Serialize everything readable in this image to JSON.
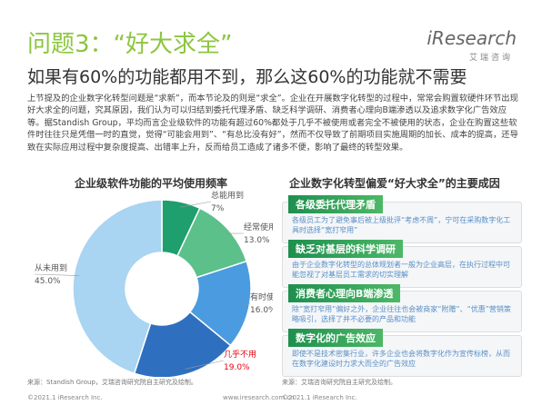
{
  "header": {
    "title": "问题3：“好大求全”",
    "logo": "iResearch",
    "logo_sub": "艾瑞咨询"
  },
  "subtitle": "如果有60%的功能都用不到，那么这60%的功能就不需要",
  "body": "上节提及的企业数字化转型问题是“求新”，而本节论及的则是“求全”。企业在开展数字化转型的过程中，常常会购置软硬件环节出现好大求全的问题，究其原因，我们认为可以归结到委托代理矛盾、缺乏科学调研、消费者心理向B端渗透以及追求数字化广告效应等。据Standish Group，平均而言企业级软件的功能有超过60%都处于几乎不被使用或者完全不被使用的状态，企业在购置这些软件时往往只是凭借一时的直觉，觉得“可能会用到”、“有总比没有好”，然而不仅导致了前期项目实施周期的加长、成本的提高，还导致在实际应用过程中复杂度提高、出错率上升，反而给员工造成了诸多不便，影响了最终的转型效果。",
  "chart_data": {
    "type": "donut",
    "title": "企业级软件功能的平均使用频率",
    "categories": [
      "总能用到",
      "经常使用",
      "有时使用",
      "几乎不用",
      "从未用到"
    ],
    "values": [
      7,
      13,
      16,
      19,
      45
    ],
    "value_labels": [
      "7%",
      "13.0%",
      "16.0%",
      "19.0%",
      "45.0%"
    ],
    "colors": [
      "#1f9e6e",
      "#5cc08a",
      "#4a9be0",
      "#2f6fc0",
      "#a9d4f2"
    ],
    "label_colors": [
      "#555555",
      "#555555",
      "#555555",
      "#e60012",
      "#555555"
    ],
    "source": "来源：Standish Group，艾瑞咨询研究院自主研究及绘制。"
  },
  "causes": {
    "title": "企业数字化转型偏爱“好大求全”的主要成因",
    "items": [
      {
        "title": "各级委托代理矛盾",
        "text": "各级员工为了避免事后被上级批评“考虑不周”，宁可在采购数字化工具时选择“宽打窄用”"
      },
      {
        "title": "缺乏对基层的科学调研",
        "text": "由于企业数字化转型的总体规划者一般为企业高层，在执行过程中可能忽视了对基层员工需求的切实理解"
      },
      {
        "title": "消费者心理向B端渗透",
        "text": "除“宽打窄用”偏好之外，企业往往也会被商家“附赠”、“优惠”营销策略吸引，选择了并不必要的产品和功能"
      },
      {
        "title": "数字化的广告效应",
        "text": "即使不是技术密集行业，许多企业也会将数字化作为宣传标榜，从而在数字化建设时力求大而全的广告效应"
      }
    ],
    "source": "来源：艾瑞咨询研究院自主研究及绘制。"
  },
  "footer": {
    "left": "©2021.1 iResearch Inc.",
    "center": "www.iresearch.com.cn",
    "right": "©2021.1 iResearch Inc."
  }
}
